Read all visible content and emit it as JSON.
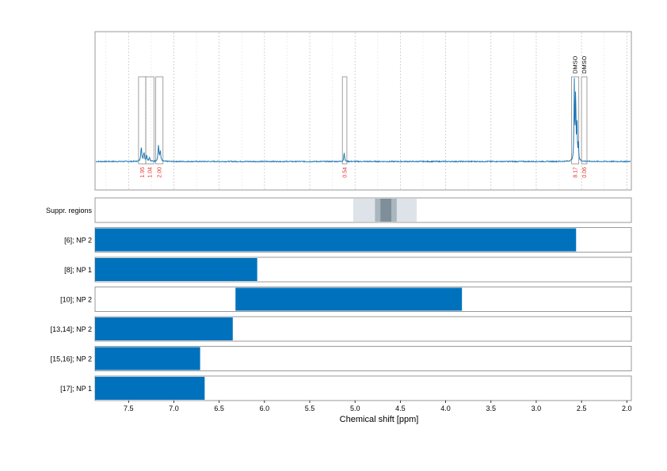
{
  "chart_data": {
    "type": "nmr-spectrum-with-range-bars",
    "xlabel": "Chemical shift [ppm]",
    "x_reversed": true,
    "xlim": [
      7.87,
      1.95
    ],
    "xticks": [
      "7.5",
      "7.0",
      "6.5",
      "6.0",
      "5.5",
      "5.0",
      "4.5",
      "4.0",
      "3.5",
      "3.0",
      "2.5",
      "2.0"
    ],
    "xtick_values": [
      7.5,
      7.0,
      6.5,
      6.0,
      5.5,
      5.0,
      4.5,
      4.0,
      3.5,
      3.0,
      2.5,
      2.0
    ],
    "grid": true,
    "spectrum": {
      "color": "#1f77b4",
      "baseline_noise": 0.012,
      "peaks": [
        {
          "ppm": 7.36,
          "height": 0.18,
          "width": 0.006
        },
        {
          "ppm": 7.33,
          "height": 0.11,
          "width": 0.006
        },
        {
          "ppm": 7.3,
          "height": 0.07,
          "width": 0.006
        },
        {
          "ppm": 7.27,
          "height": 0.05,
          "width": 0.006
        },
        {
          "ppm": 7.17,
          "height": 0.19,
          "width": 0.006
        },
        {
          "ppm": 7.15,
          "height": 0.12,
          "width": 0.006
        },
        {
          "ppm": 5.12,
          "height": 0.11,
          "width": 0.005
        },
        {
          "ppm": 2.58,
          "height": 0.95,
          "width": 0.004
        },
        {
          "ppm": 2.565,
          "height": 0.85,
          "width": 0.004
        },
        {
          "ppm": 2.55,
          "height": 0.45,
          "width": 0.004
        },
        {
          "ppm": 2.535,
          "height": 0.2,
          "width": 0.004
        }
      ]
    },
    "integration_regions": [
      {
        "from": 7.39,
        "to": 7.31,
        "integral": "1.95",
        "label": ""
      },
      {
        "from": 7.31,
        "to": 7.22,
        "integral": "1.04",
        "label": ""
      },
      {
        "from": 7.2,
        "to": 7.12,
        "integral": "2.00",
        "label": ""
      },
      {
        "from": 5.14,
        "to": 5.09,
        "integral": "0.54",
        "label": ""
      },
      {
        "from": 2.61,
        "to": 2.53,
        "integral": "8.17",
        "label": "DMSO"
      },
      {
        "from": 2.5,
        "to": 2.44,
        "integral": "0.06",
        "label": "DMSO"
      }
    ],
    "suppressed_regions": {
      "label": "Suppr. regions",
      "bands": [
        {
          "from": 5.02,
          "to": 4.32,
          "color": "#dde3e8"
        },
        {
          "from": 4.78,
          "to": 4.54,
          "color": "#a9b6bf"
        },
        {
          "from": 4.72,
          "to": 4.6,
          "color": "#7e8f99"
        }
      ]
    },
    "ranges": [
      {
        "label": "[6]; NP 2",
        "from": 7.87,
        "to": 2.56,
        "color": "#0072bd"
      },
      {
        "label": "[8]; NP 1",
        "from": 7.87,
        "to": 6.08,
        "color": "#0072bd"
      },
      {
        "label": "[10]; NP 2",
        "from": 6.32,
        "to": 3.82,
        "color": "#0072bd"
      },
      {
        "label": "[13,14]; NP 2",
        "from": 7.87,
        "to": 6.35,
        "color": "#0072bd"
      },
      {
        "label": "[15,16]; NP 2",
        "from": 7.87,
        "to": 6.71,
        "color": "#0072bd"
      },
      {
        "label": "[17]; NP 1",
        "from": 7.87,
        "to": 6.66,
        "color": "#0072bd"
      }
    ]
  }
}
